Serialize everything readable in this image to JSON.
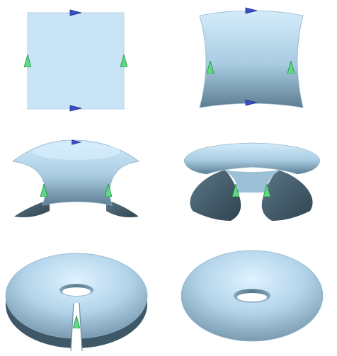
{
  "figure": {
    "panels": [
      {
        "id": "flat-square",
        "step": 1
      },
      {
        "id": "bent-square",
        "step": 2
      },
      {
        "id": "tube-forming",
        "step": 3
      },
      {
        "id": "tube-rolling",
        "step": 4
      },
      {
        "id": "torus-open",
        "step": 5
      },
      {
        "id": "torus-closed",
        "step": 6
      }
    ],
    "colors": {
      "surface_light": "#c8e6f8",
      "surface_mid": "#9fc4dc",
      "surface_dark": "#3d5665",
      "arrow_blue": "#3b4fc4",
      "arrow_green": "#4cc873"
    },
    "arrow_icons": [
      "blue-edge-arrow-icon",
      "green-edge-arrow-icon"
    ]
  }
}
